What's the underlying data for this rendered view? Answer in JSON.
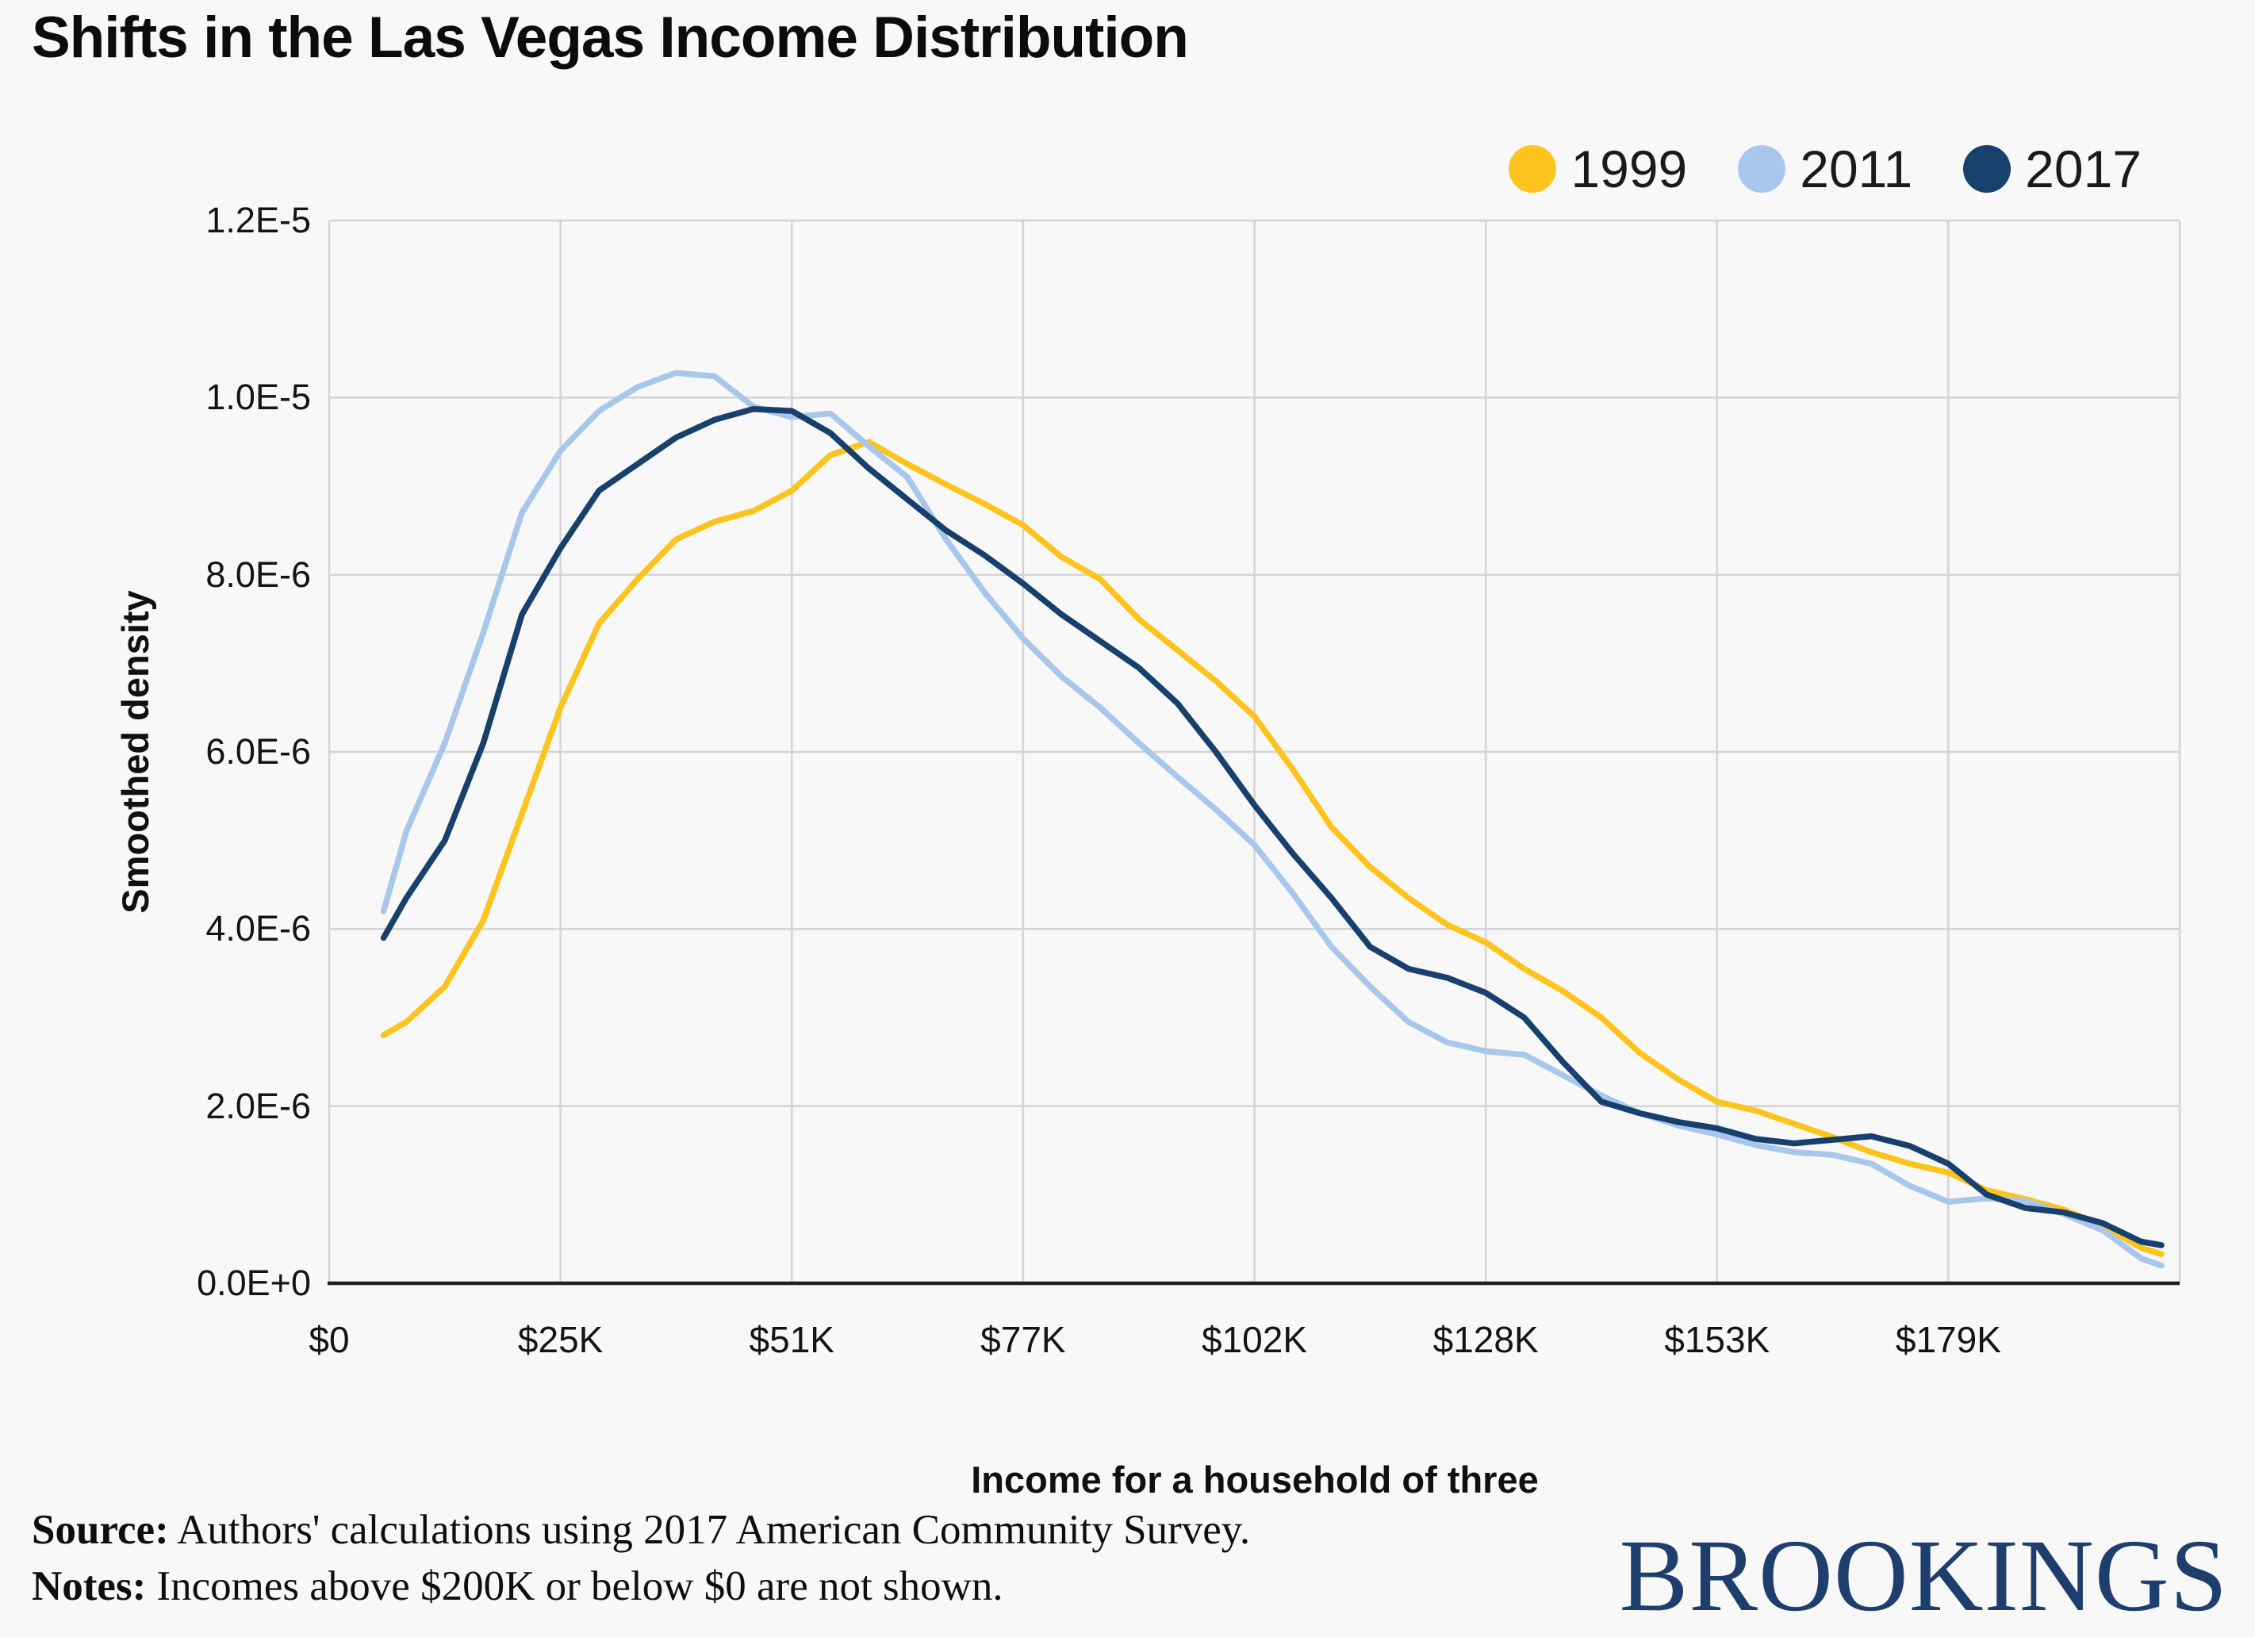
{
  "title": "Shifts in the Las Vegas Income Distribution",
  "legend": [
    {
      "label": "1999",
      "color": "#fcc41d"
    },
    {
      "label": "2011",
      "color": "#a9c7ec"
    },
    {
      "label": "2017",
      "color": "#17406d"
    }
  ],
  "chart_data": {
    "type": "line",
    "title": "Shifts in the Las Vegas Income Distribution",
    "xlabel": "Income for a household of three",
    "ylabel": "Smoothed density",
    "x_unit": "USD thousands",
    "xlim": [
      0,
      204
    ],
    "ylim": [
      0,
      1.2e-05
    ],
    "grid": true,
    "legend_position": "top-right",
    "x_ticks": {
      "values": [
        0,
        25.5,
        51,
        76.5,
        102,
        127.5,
        153,
        178.5
      ],
      "labels": [
        "$0",
        "$25K",
        "$51K",
        "$77K",
        "$102K",
        "$128K",
        "$153K",
        "$179K"
      ]
    },
    "y_ticks": {
      "values": [
        0,
        2e-06,
        4e-06,
        6e-06,
        8e-06,
        1e-05,
        1.2e-05
      ],
      "labels": [
        "0.0E+0",
        "2.0E-6",
        "4.0E-6",
        "6.0E-6",
        "8.0E-6",
        "1.0E-5",
        "1.2E-5"
      ]
    },
    "x": [
      6,
      8.5,
      12.75,
      17,
      21.25,
      25.5,
      29.75,
      34,
      38.25,
      42.5,
      46.75,
      51,
      55.25,
      59.5,
      63.75,
      68,
      72.25,
      76.5,
      80.75,
      85,
      89.25,
      93.5,
      97.75,
      102,
      106.25,
      110.5,
      114.75,
      119,
      123.25,
      127.5,
      131.75,
      136,
      140.25,
      144.5,
      148.75,
      153,
      157.25,
      161.5,
      165.75,
      170,
      174.25,
      178.5,
      182.75,
      187,
      191.25,
      195.5,
      199.75,
      202
    ],
    "series": [
      {
        "name": "1999",
        "color": "#fcc41d",
        "values": [
          2.8e-06,
          2.95e-06,
          3.35e-06,
          4.1e-06,
          5.3e-06,
          6.5e-06,
          7.45e-06,
          7.95e-06,
          8.4e-06,
          8.6e-06,
          8.72e-06,
          8.95e-06,
          9.35e-06,
          9.5e-06,
          9.25e-06,
          9.02e-06,
          8.8e-06,
          8.56e-06,
          8.2e-06,
          7.95e-06,
          7.5e-06,
          7.15e-06,
          6.8e-06,
          6.4e-06,
          5.8e-06,
          5.15e-06,
          4.7e-06,
          4.35e-06,
          4.05e-06,
          3.85e-06,
          3.55e-06,
          3.3e-06,
          3e-06,
          2.6e-06,
          2.3e-06,
          2.05e-06,
          1.95e-06,
          1.8e-06,
          1.65e-06,
          1.48e-06,
          1.35e-06,
          1.25e-06,
          1.05e-06,
          9.5e-07,
          8.3e-07,
          6.5e-07,
          4e-07,
          3.3e-07
        ]
      },
      {
        "name": "2011",
        "color": "#a9c7ec",
        "values": [
          4.2e-06,
          5.1e-06,
          6.1e-06,
          7.35e-06,
          8.7e-06,
          9.4e-06,
          9.85e-06,
          1.012e-05,
          1.028e-05,
          1.024e-05,
          9.9e-06,
          9.78e-06,
          9.82e-06,
          9.45e-06,
          9.1e-06,
          8.4e-06,
          7.8e-06,
          7.28e-06,
          6.85e-06,
          6.5e-06,
          6.1e-06,
          5.72e-06,
          5.35e-06,
          4.95e-06,
          4.4e-06,
          3.8e-06,
          3.35e-06,
          2.95e-06,
          2.72e-06,
          2.62e-06,
          2.58e-06,
          2.35e-06,
          2.12e-06,
          1.92e-06,
          1.78e-06,
          1.68e-06,
          1.56e-06,
          1.48e-06,
          1.45e-06,
          1.35e-06,
          1.1e-06,
          9.2e-07,
          9.6e-07,
          9.3e-07,
          7.8e-07,
          6e-07,
          2.8e-07,
          2e-07
        ]
      },
      {
        "name": "2017",
        "color": "#17406d",
        "values": [
          3.9e-06,
          4.35e-06,
          5e-06,
          6.1e-06,
          7.55e-06,
          8.3e-06,
          8.95e-06,
          9.25e-06,
          9.55e-06,
          9.75e-06,
          9.87e-06,
          9.85e-06,
          9.6e-06,
          9.2e-06,
          8.85e-06,
          8.5e-06,
          8.22e-06,
          7.9e-06,
          7.55e-06,
          7.25e-06,
          6.95e-06,
          6.55e-06,
          6e-06,
          5.4e-06,
          4.85e-06,
          4.35e-06,
          3.8e-06,
          3.55e-06,
          3.45e-06,
          3.28e-06,
          3e-06,
          2.5e-06,
          2.05e-06,
          1.92e-06,
          1.82e-06,
          1.75e-06,
          1.63e-06,
          1.58e-06,
          1.62e-06,
          1.66e-06,
          1.55e-06,
          1.35e-06,
          1e-06,
          8.5e-07,
          8e-07,
          6.8e-07,
          4.7e-07,
          4.3e-07
        ]
      }
    ]
  },
  "footer": {
    "source_label": "Source:",
    "source_text": " Authors' calculations using 2017 American Community Survey.",
    "notes_label": "Notes:",
    "notes_text": " Incomes above $200K or below $0 are not shown.",
    "logo": "BROOKINGS"
  },
  "colors": {
    "background": "#f8f8f8",
    "gridline": "#d4d4d4",
    "baseline": "#1f1f1f",
    "text": "#111111",
    "logo_navy": "#1e3f6d"
  }
}
